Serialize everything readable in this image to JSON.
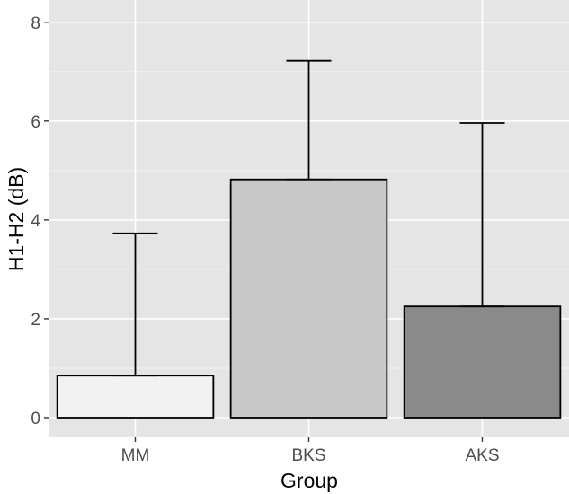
{
  "chart_data": {
    "type": "bar",
    "title": "",
    "xlabel": "Group",
    "ylabel": "H1-H2 (dB)",
    "categories": [
      "MM",
      "BKS",
      "AKS"
    ],
    "values": [
      0.85,
      4.82,
      2.25
    ],
    "error_upper": [
      3.73,
      7.22,
      5.96
    ],
    "ylim": [
      -0.4,
      8.45
    ],
    "yticks": [
      0,
      2,
      4,
      6,
      8
    ],
    "ytick_labels": [
      "0",
      "2",
      "4",
      "6",
      "8"
    ],
    "bar_colors": [
      "#f2f2f2",
      "#c8c8c8",
      "#8a8a8a"
    ],
    "panel_background": "#e5e5e5",
    "grid": true,
    "legend": "none"
  }
}
